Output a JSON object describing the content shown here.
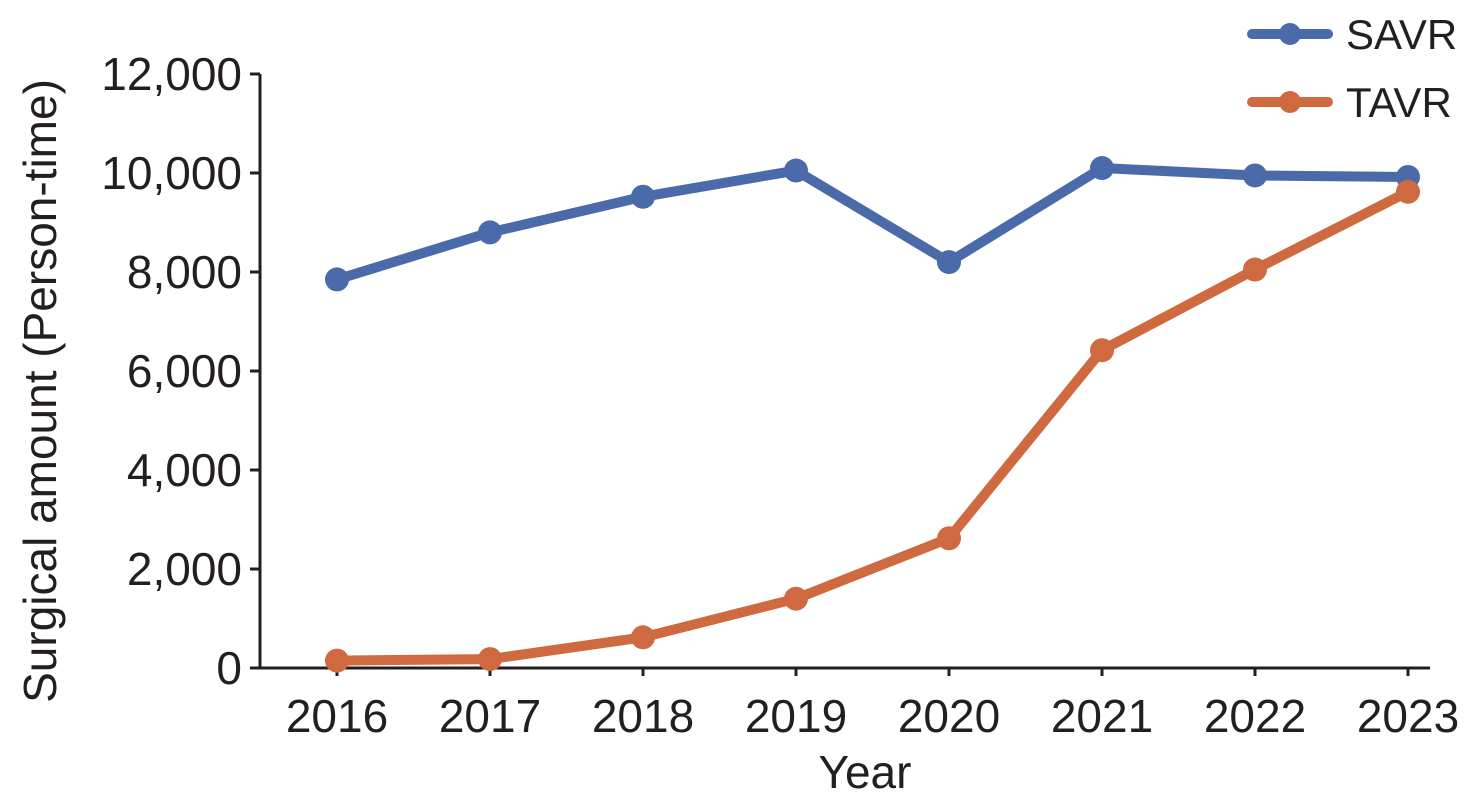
{
  "chart_data": {
    "type": "line",
    "x": [
      "2016",
      "2017",
      "2018",
      "2019",
      "2020",
      "2021",
      "2022",
      "2023"
    ],
    "series": [
      {
        "name": "SAVR",
        "color": "#4a6aaa",
        "values": [
          7850,
          8800,
          9520,
          10050,
          8200,
          10100,
          9950,
          9920
        ]
      },
      {
        "name": "TAVR",
        "color": "#cf6a40",
        "values": [
          150,
          180,
          620,
          1400,
          2620,
          6420,
          8050,
          9620
        ]
      }
    ],
    "xlabel": "Year",
    "ylabel": "Surgical amount (Person-time)",
    "ylim": [
      0,
      12000
    ],
    "yticks": [
      0,
      2000,
      4000,
      6000,
      8000,
      10000,
      12000
    ],
    "ytick_labels": [
      "0",
      "2,000",
      "4,000",
      "6,000",
      "8,000",
      "10,000",
      "12,000"
    ],
    "grid": false,
    "legend": "top-right"
  }
}
